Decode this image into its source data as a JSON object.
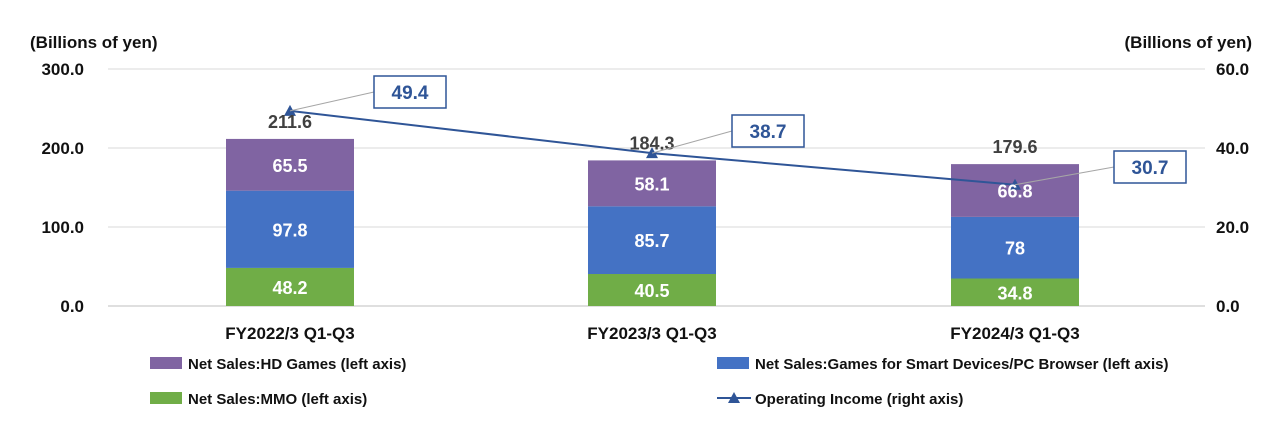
{
  "chart_data": {
    "type": "bar",
    "stacked": true,
    "categories": [
      "FY2022/3 Q1-Q3",
      "FY2023/3 Q1-Q3",
      "FY2024/3 Q1-Q3"
    ],
    "left_axis": {
      "unit_label": "(Billions of yen)",
      "ylim": [
        0,
        300
      ],
      "ticks": [
        "0.0",
        "100.0",
        "200.0",
        "300.0"
      ],
      "tick_values": [
        0,
        100,
        200,
        300
      ]
    },
    "right_axis": {
      "unit_label": "(Billions of yen)",
      "ylim": [
        0,
        60
      ],
      "ticks": [
        "0.0",
        "20.0",
        "40.0",
        "60.0"
      ],
      "tick_values": [
        0,
        20,
        40,
        60
      ]
    },
    "series": [
      {
        "name": "Net Sales:MMO (left axis)",
        "color": "#70ad47",
        "values": [
          48.2,
          40.5,
          34.8
        ],
        "labels": [
          "48.2",
          "40.5",
          "34.8"
        ]
      },
      {
        "name": "Net Sales:Games for Smart Devices/PC Browser (left axis)",
        "color": "#4472c4",
        "values": [
          97.8,
          85.7,
          78
        ],
        "labels": [
          "97.8",
          "85.7",
          "78"
        ]
      },
      {
        "name": "Net Sales:HD Games (left axis)",
        "color": "#8064a2",
        "values": [
          65.5,
          58.1,
          66.8
        ],
        "labels": [
          "65.5",
          "58.1",
          "66.8"
        ]
      }
    ],
    "totals": {
      "values": [
        211.6,
        184.3,
        179.6
      ],
      "labels": [
        "211.6",
        "184.3",
        "179.6"
      ]
    },
    "line_series": {
      "name": "Operating Income (right axis)",
      "color": "#2f5597",
      "axis": "right",
      "marker": "triangle",
      "values": [
        49.4,
        38.7,
        30.7
      ],
      "labels": [
        "49.4",
        "38.7",
        "30.7"
      ]
    },
    "legend": {
      "placement": "bottom",
      "items": [
        "Net Sales:HD Games (left axis)",
        "Net Sales:Games for Smart Devices/PC Browser (left axis)",
        "Net Sales:MMO (left axis)",
        "Operating Income (right axis)"
      ]
    },
    "grid": true
  }
}
